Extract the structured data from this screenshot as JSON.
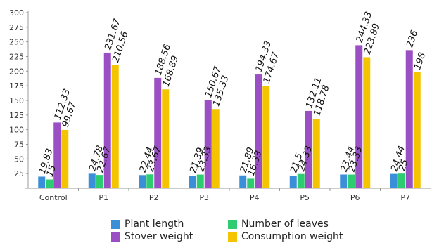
{
  "chart_data": {
    "type": "bar",
    "categories": [
      "Control",
      "P1",
      "P2",
      "P3",
      "P4",
      "P5",
      "P6",
      "P7"
    ],
    "series": [
      {
        "name": "Plant length",
        "color": "#3a8fd8",
        "values": [
          19.83,
          24.78,
          22.44,
          21.39,
          21.89,
          21.5,
          23.44,
          24.44
        ]
      },
      {
        "name": "Number of leaves",
        "color": "#2ecc71",
        "values": [
          15,
          22.67,
          23.67,
          23.33,
          16.33,
          24.33,
          23.33,
          25
        ]
      },
      {
        "name": "Stover weight",
        "color": "#9b4fc4",
        "values": [
          112.33,
          231.67,
          188.56,
          150.67,
          194.33,
          132.11,
          244.33,
          236
        ]
      },
      {
        "name": "Consumption weight",
        "color": "#f5c400",
        "values": [
          99.67,
          210.56,
          168.89,
          135.33,
          174.67,
          118.78,
          223.89,
          198
        ]
      }
    ],
    "ylim": [
      0,
      300
    ],
    "yticks": [
      25,
      50,
      75,
      100,
      125,
      150,
      175,
      200,
      225,
      250,
      275,
      300
    ],
    "grid": false,
    "legend_position": "bottom",
    "xlabel": "",
    "ylabel": "",
    "title": ""
  }
}
